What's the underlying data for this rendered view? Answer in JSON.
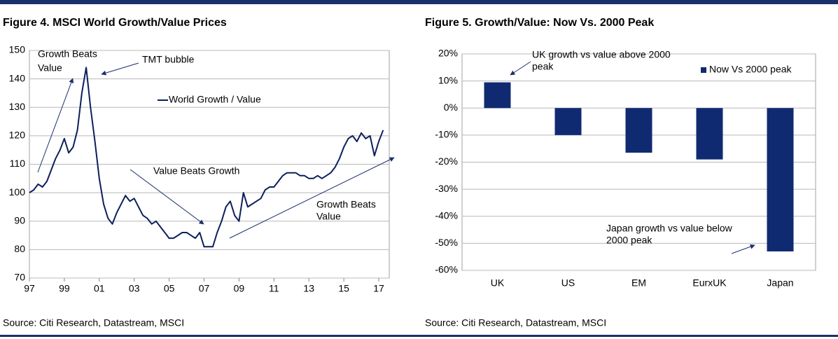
{
  "chart_data": [
    {
      "type": "line",
      "title": "Figure 4. MSCI World Growth/Value Prices",
      "source": "Source: Citi Research, Datastream, MSCI",
      "x": [
        1997.0,
        1997.25,
        1997.5,
        1997.75,
        1998.0,
        1998.25,
        1998.5,
        1998.75,
        1999.0,
        1999.25,
        1999.5,
        1999.75,
        2000.0,
        2000.25,
        2000.5,
        2000.75,
        2001.0,
        2001.25,
        2001.5,
        2001.75,
        2002.0,
        2002.25,
        2002.5,
        2002.75,
        2003.0,
        2003.25,
        2003.5,
        2003.75,
        2004.0,
        2004.25,
        2004.5,
        2004.75,
        2005.0,
        2005.25,
        2005.5,
        2005.75,
        2006.0,
        2006.25,
        2006.5,
        2006.75,
        2007.0,
        2007.25,
        2007.5,
        2007.75,
        2008.0,
        2008.25,
        2008.5,
        2008.75,
        2009.0,
        2009.25,
        2009.5,
        2009.75,
        2010.0,
        2010.25,
        2010.5,
        2010.75,
        2011.0,
        2011.25,
        2011.5,
        2011.75,
        2012.0,
        2012.25,
        2012.5,
        2012.75,
        2013.0,
        2013.25,
        2013.5,
        2013.75,
        2014.0,
        2014.25,
        2014.5,
        2014.75,
        2015.0,
        2015.25,
        2015.5,
        2015.75,
        2016.0,
        2016.25,
        2016.5,
        2016.75,
        2017.0,
        2017.25
      ],
      "series": [
        {
          "name": "World Growth / Value",
          "color": "#0d1f5c",
          "values": [
            100,
            101,
            103,
            102,
            104,
            108,
            112,
            115,
            119,
            114,
            116,
            122,
            135,
            144,
            130,
            118,
            105,
            96,
            91,
            89,
            93,
            96,
            99,
            97,
            98,
            95,
            92,
            91,
            89,
            90,
            88,
            86,
            84,
            84,
            85,
            86,
            86,
            85,
            84,
            86,
            81,
            81,
            81,
            86,
            90,
            95,
            97,
            92,
            90,
            100,
            95,
            96,
            97,
            98,
            101,
            102,
            102,
            104,
            106,
            107,
            107,
            107,
            106,
            106,
            105,
            105,
            106,
            105,
            106,
            107,
            109,
            112,
            116,
            119,
            120,
            118,
            121,
            119,
            120,
            113,
            118,
            122
          ]
        }
      ],
      "xlim": [
        1997,
        2017.6
      ],
      "xticks": [
        {
          "value": 1997,
          "label": "97"
        },
        {
          "value": 1999,
          "label": "99"
        },
        {
          "value": 2001,
          "label": "01"
        },
        {
          "value": 2003,
          "label": "03"
        },
        {
          "value": 2005,
          "label": "05"
        },
        {
          "value": 2007,
          "label": "07"
        },
        {
          "value": 2009,
          "label": "09"
        },
        {
          "value": 2011,
          "label": "11"
        },
        {
          "value": 2013,
          "label": "13"
        },
        {
          "value": 2015,
          "label": "15"
        },
        {
          "value": 2017,
          "label": "17"
        }
      ],
      "ylim": [
        70,
        150
      ],
      "yticks": [
        70,
        80,
        90,
        100,
        110,
        120,
        130,
        140,
        150
      ],
      "grid": true,
      "annotations": [
        {
          "lines": [
            "Growth Beats",
            "Value"
          ]
        },
        {
          "lines": [
            "TMT bubble"
          ]
        },
        {
          "lines": [
            "Value Beats Growth"
          ]
        },
        {
          "lines": [
            "Growth Beats",
            "Value"
          ]
        }
      ]
    },
    {
      "type": "bar",
      "title": "Figure 5. Growth/Value: Now Vs. 2000 Peak",
      "source": "Source: Citi Research, Datastream, MSCI",
      "categories": [
        "UK",
        "US",
        "EM",
        "EurxUK",
        "Japan"
      ],
      "series": [
        {
          "name": "Now Vs 2000 peak",
          "color": "#102a72",
          "values": [
            9.5,
            -10,
            -16.5,
            -19,
            -53
          ]
        }
      ],
      "ylim": [
        -60,
        20
      ],
      "yticks": [
        {
          "value": 20,
          "label": "20%"
        },
        {
          "value": 10,
          "label": "10%"
        },
        {
          "value": 0,
          "label": "0%"
        },
        {
          "value": -10,
          "label": "-10%"
        },
        {
          "value": -20,
          "label": "-20%"
        },
        {
          "value": -30,
          "label": "-30%"
        },
        {
          "value": -40,
          "label": "-40%"
        },
        {
          "value": -50,
          "label": "-50%"
        },
        {
          "value": -60,
          "label": "-60%"
        }
      ],
      "grid": true,
      "annotations": [
        {
          "lines": [
            "UK growth vs value above 2000",
            "peak"
          ]
        },
        {
          "lines": [
            "Japan growth vs value below",
            "2000 peak"
          ]
        }
      ]
    }
  ]
}
